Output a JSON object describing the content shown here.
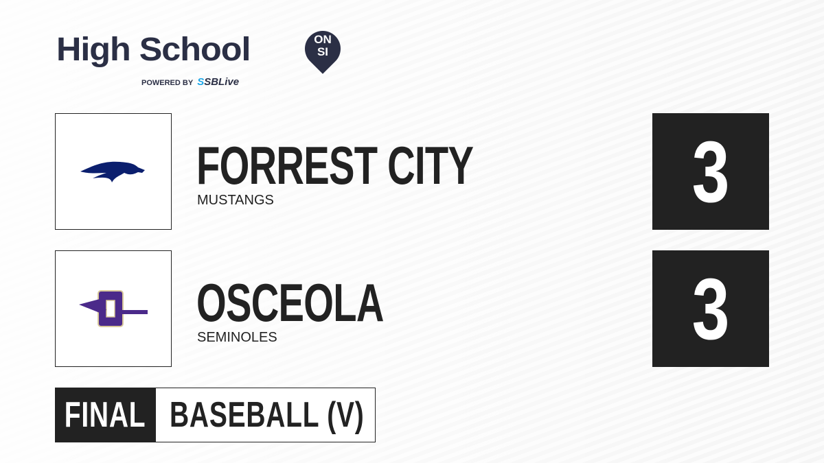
{
  "brand": {
    "title": "High School",
    "badge_top": "ON",
    "badge_bottom": "SI",
    "powered_by": "POWERED BY",
    "partner": "SBLive"
  },
  "teams": [
    {
      "name": "FORREST CITY",
      "mascot": "MUSTANGS",
      "score": "3",
      "logo_icon": "mustang-head-icon",
      "color": "#0b1f6e"
    },
    {
      "name": "OSCEOLA",
      "mascot": "SEMINOLES",
      "score": "3",
      "logo_icon": "arrowhead-o-icon",
      "color": "#4b2a8a"
    }
  ],
  "status": "FINAL",
  "sport": "BASEBALL (V)"
}
